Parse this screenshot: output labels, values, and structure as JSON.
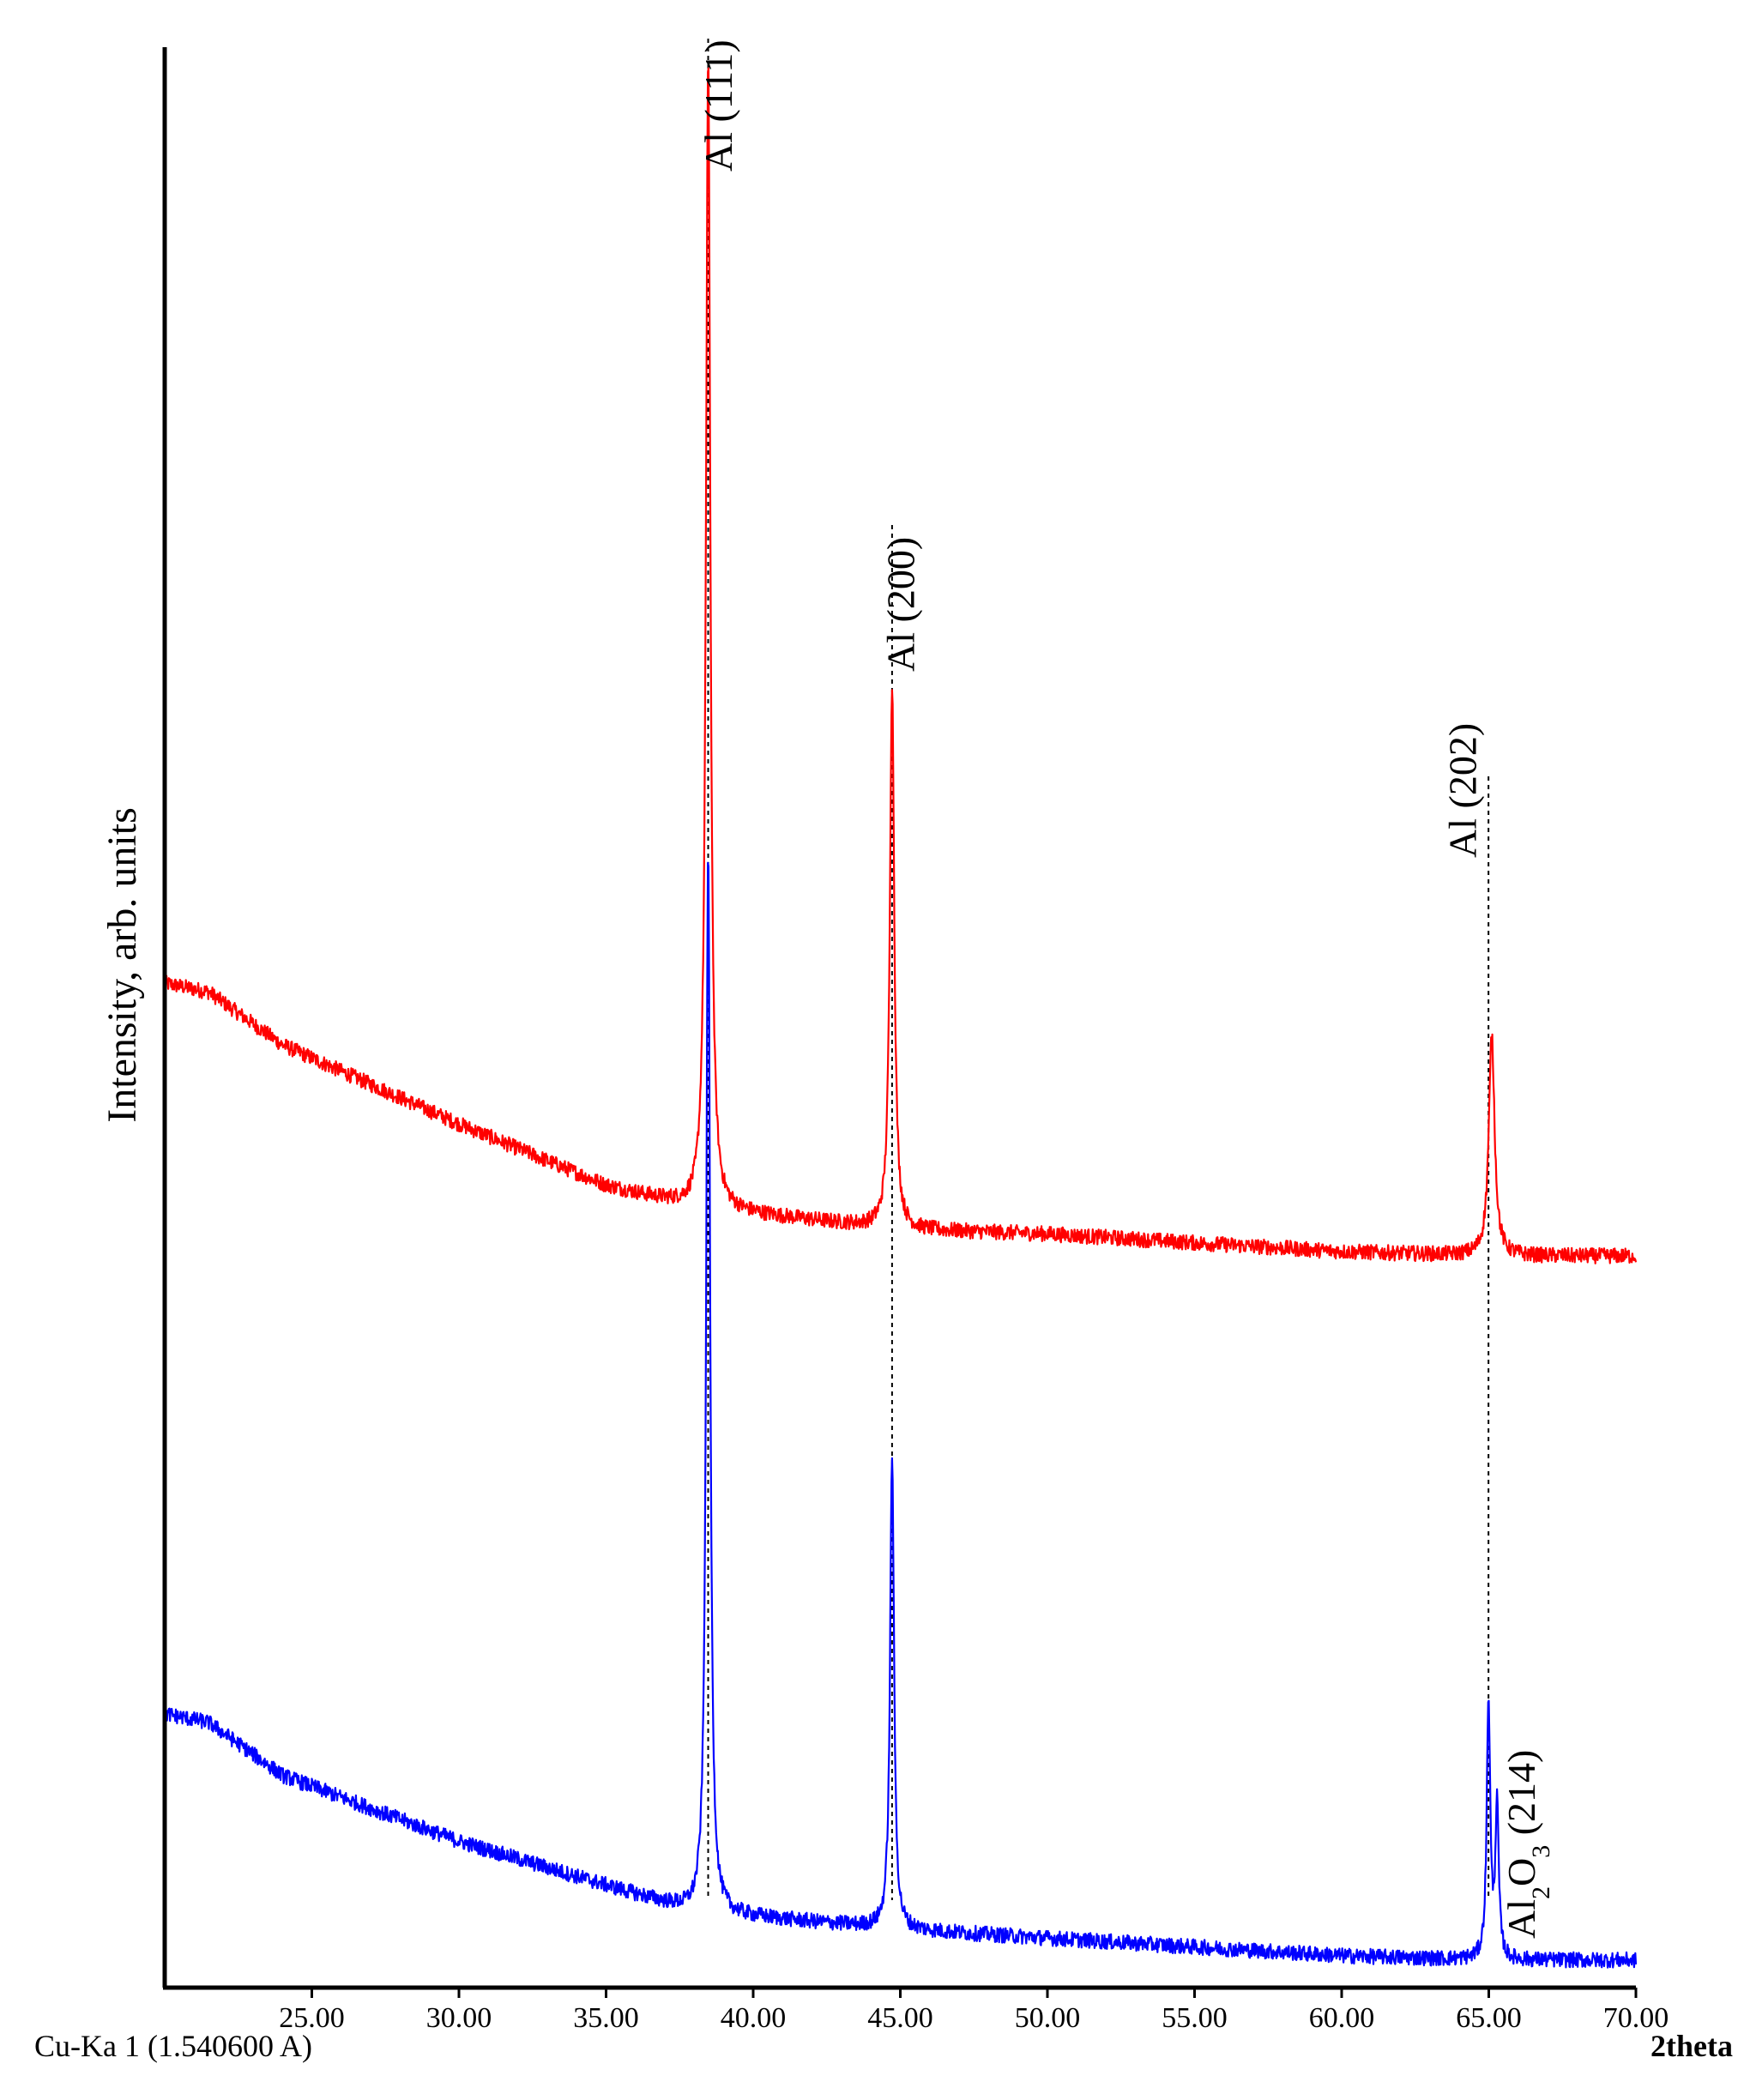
{
  "chart_data": {
    "type": "line",
    "title": "",
    "ylabel": "Intensity, arb. units",
    "xlabel": "2theta",
    "radiation_label": "Cu-Ka 1 (1.540600 A)",
    "xlim": [
      20.0,
      70.0
    ],
    "x_ticks": [
      25,
      30,
      35,
      40,
      45,
      50,
      55,
      60,
      65,
      70
    ],
    "x_tick_labels": [
      "25.00",
      "30.00",
      "35.00",
      "40.00",
      "45.00",
      "50.00",
      "55.00",
      "60.00",
      "65.00",
      "70.00"
    ],
    "y_ticks_shown": false,
    "grid": false,
    "series": [
      {
        "color": "#ff0000",
        "offset": 1.6,
        "background": [
          [
            20.0,
            0.62
          ],
          [
            21.5,
            0.6
          ],
          [
            24.0,
            0.48
          ],
          [
            30.0,
            0.3
          ],
          [
            35.0,
            0.16
          ],
          [
            38.0,
            0.11
          ],
          [
            45.0,
            0.06
          ],
          [
            50.0,
            0.05
          ],
          [
            55.0,
            0.03
          ],
          [
            60.0,
            0.01
          ],
          [
            65.0,
            0.0
          ],
          [
            70.0,
            0.0
          ]
        ],
        "peaks": [
          {
            "x": 38.47,
            "height": 2.62,
            "width": 0.09
          },
          {
            "x": 44.72,
            "height": 1.24,
            "width": 0.09
          },
          {
            "x": 65.1,
            "height": 0.5,
            "width": 0.12
          }
        ]
      },
      {
        "color": "#0000ff",
        "offset": 0.0,
        "background": [
          [
            20.0,
            0.56
          ],
          [
            21.5,
            0.54
          ],
          [
            24.0,
            0.42
          ],
          [
            30.0,
            0.27
          ],
          [
            35.0,
            0.17
          ],
          [
            38.0,
            0.11
          ],
          [
            45.0,
            0.07
          ],
          [
            50.0,
            0.05
          ],
          [
            55.0,
            0.03
          ],
          [
            60.0,
            0.01
          ],
          [
            65.0,
            0.0
          ],
          [
            70.0,
            0.0
          ]
        ],
        "peaks": [
          {
            "x": 38.47,
            "height": 2.43,
            "width": 0.08
          },
          {
            "x": 44.72,
            "height": 1.08,
            "width": 0.08
          },
          {
            "x": 64.99,
            "height": 0.59,
            "width": 0.07
          },
          {
            "x": 65.28,
            "height": 0.34,
            "width": 0.07
          }
        ]
      }
    ],
    "reference_lines": [
      38.47,
      44.72,
      64.99
    ],
    "annotations": [
      {
        "text": "Al (111)",
        "x": 38.8
      },
      {
        "text": "Al (200)",
        "x": 45.0
      },
      {
        "text": "Al (202)",
        "x": 64.1
      },
      {
        "text_parts": [
          "Al",
          "2",
          "O",
          "3",
          " (214)"
        ],
        "x": 66.1
      }
    ]
  }
}
